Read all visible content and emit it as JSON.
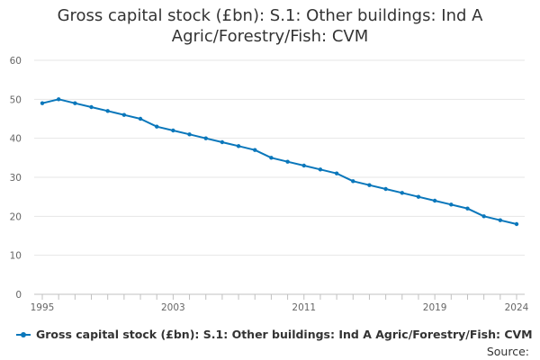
{
  "chart_data": {
    "type": "line",
    "title": "Gross capital stock (£bn): S.1: Other buildings: Ind A Agric/Forestry/Fish: CVM",
    "title_lines": [
      "Gross capital stock (£bn): S.1: Other buildings: Ind A",
      "Agric/Forestry/Fish: CVM"
    ],
    "xlabel": "",
    "ylabel": "",
    "x": [
      1995,
      1996,
      1997,
      1998,
      1999,
      2000,
      2001,
      2002,
      2003,
      2004,
      2005,
      2006,
      2007,
      2008,
      2009,
      2010,
      2011,
      2012,
      2013,
      2014,
      2015,
      2016,
      2017,
      2018,
      2019,
      2020,
      2021,
      2022,
      2023,
      2024
    ],
    "series": [
      {
        "name": "Gross capital stock (£bn): S.1: Other buildings: Ind A Agric/Forestry/Fish: CVM",
        "color": "#0a77bb",
        "values": [
          49,
          50,
          49,
          48,
          47,
          46,
          45,
          43,
          42,
          41,
          40,
          39,
          38,
          37,
          35,
          34,
          33,
          32,
          31,
          29,
          28,
          27,
          26,
          25,
          24,
          23,
          22,
          20,
          19,
          18
        ]
      }
    ],
    "ylim": [
      0,
      60
    ],
    "yticks": [
      0,
      10,
      20,
      30,
      40,
      50,
      60
    ],
    "xlim": [
      1995,
      2024
    ],
    "xtick_labels": [
      1995,
      2003,
      2011,
      2019,
      2024
    ],
    "grid": true,
    "legend_position": "bottom-left"
  },
  "source_label": "Source:"
}
